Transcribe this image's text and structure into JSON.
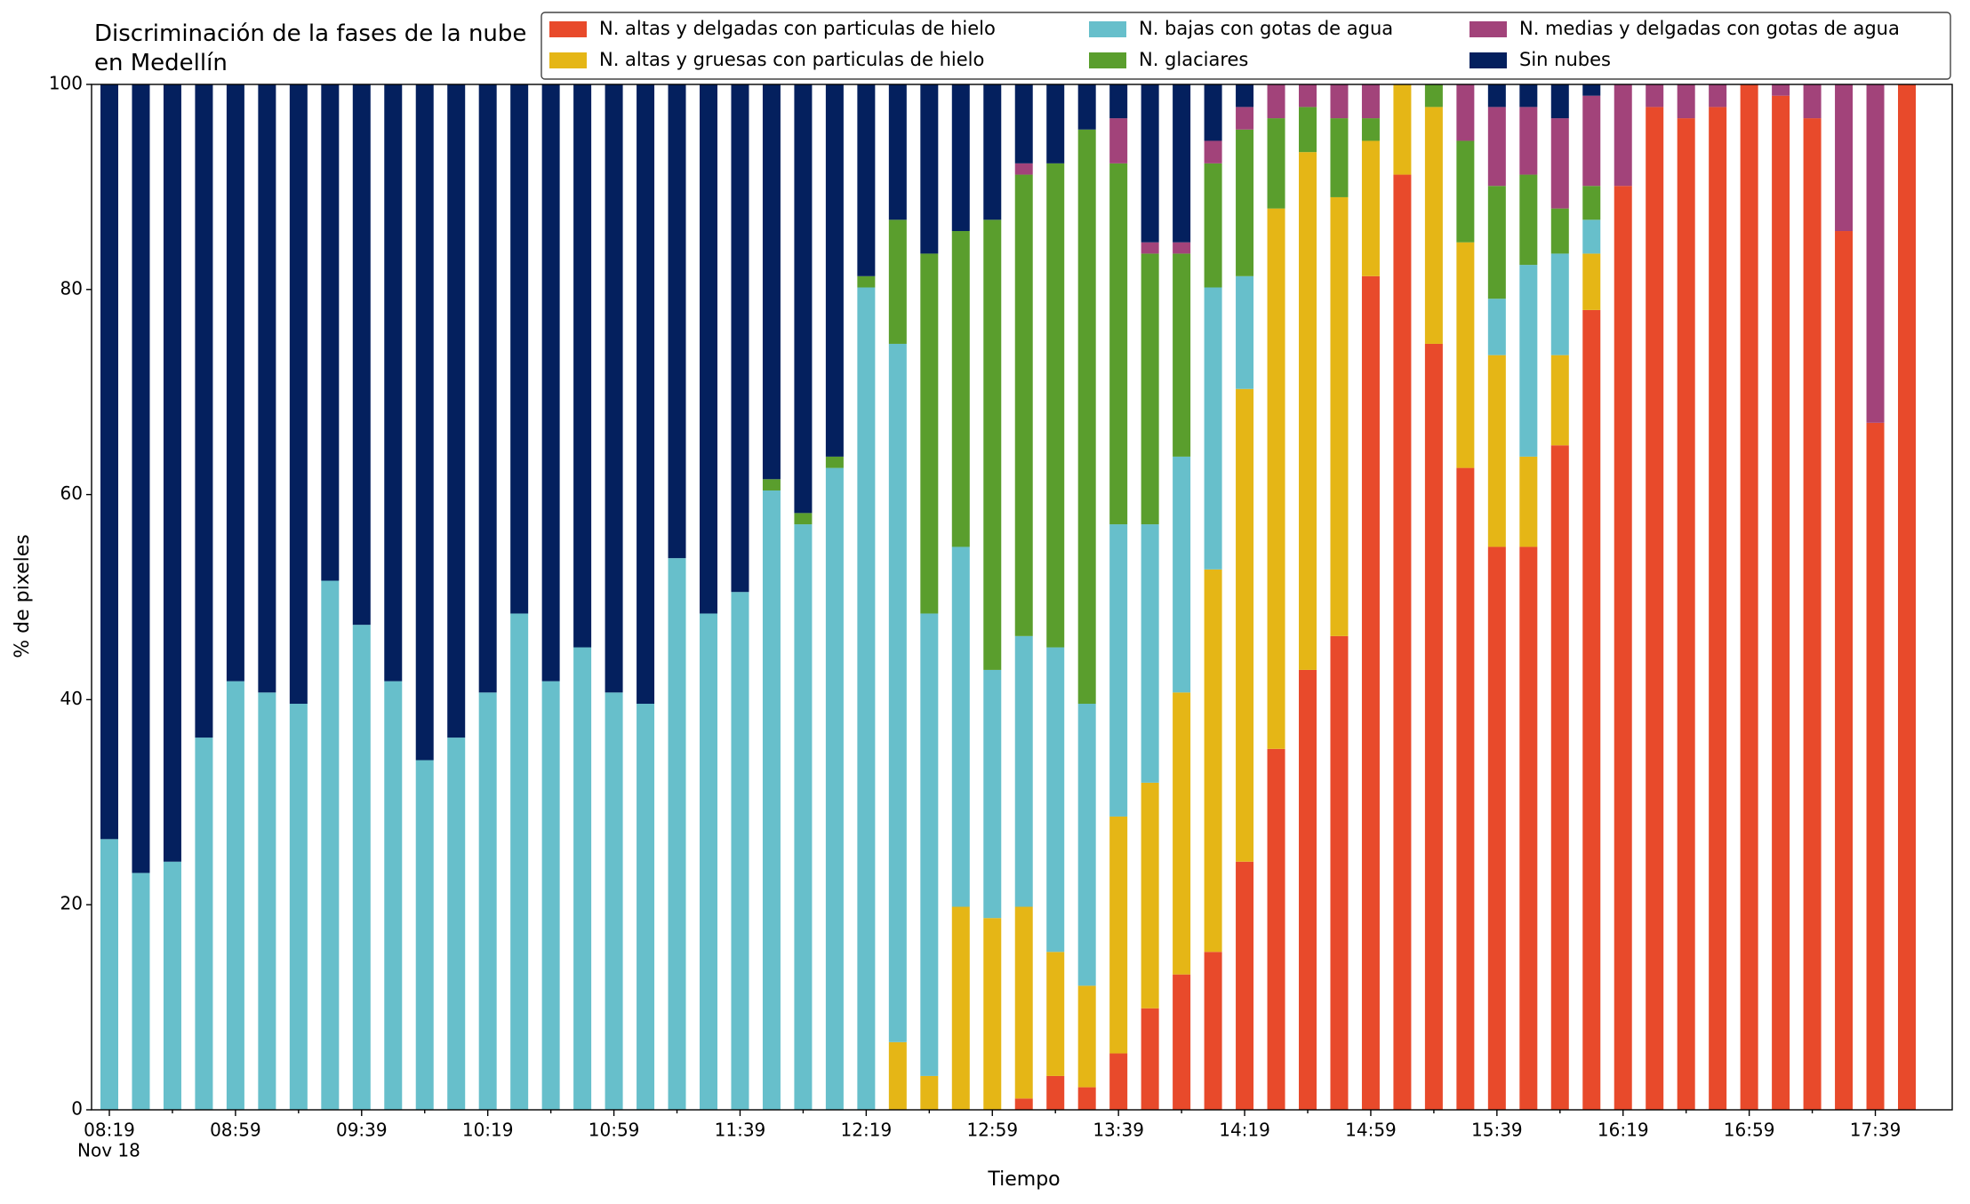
{
  "chart_data": {
    "type": "stacked_bar",
    "title": "Discriminación de la fases de la nube en Medellín",
    "x_label": "Tiempo",
    "y_label": "% de pixeles",
    "x_date_label": "Nov 18",
    "categories": [
      "08:19",
      null,
      null,
      null,
      "08:59",
      null,
      null,
      null,
      "09:39",
      null,
      null,
      null,
      "10:19",
      null,
      null,
      null,
      "10:59",
      null,
      null,
      null,
      "11:39",
      null,
      null,
      null,
      "12:19",
      null,
      null,
      null,
      "12:59",
      null,
      null,
      null,
      "13:39",
      null,
      null,
      null,
      "14:19",
      null,
      null,
      null,
      "14:59",
      null,
      null,
      null,
      "15:39",
      null,
      null,
      null,
      "16:19",
      null,
      null,
      null,
      "16:59",
      null,
      null,
      null,
      "17:39",
      null
    ],
    "ylim": [
      0,
      100
    ],
    "yticks": [
      0,
      20,
      40,
      60,
      80,
      100
    ],
    "legend": "top-right",
    "series": [
      {
        "name": "N. altas y delgadas con particulas de hielo",
        "color": "#e84a2b",
        "values": [
          0,
          0,
          0,
          0,
          0,
          0,
          0,
          0,
          0,
          0,
          0,
          0,
          0,
          0,
          0,
          0,
          0,
          0,
          0,
          0,
          0,
          0,
          0,
          0,
          0,
          0,
          0,
          0,
          0,
          1.1,
          3.3,
          2.2,
          5.5,
          9.9,
          13.2,
          15.4,
          24.2,
          35.2,
          42.9,
          46.2,
          81.3,
          91.2,
          74.7,
          62.6,
          54.9,
          54.9,
          64.8,
          78.0,
          90.1,
          97.8,
          96.7,
          97.8,
          100,
          98.9,
          96.7,
          85.7,
          67.0,
          100
        ]
      },
      {
        "name": "N. altas y gruesas con particulas de hielo",
        "color": "#e5b616",
        "values": [
          0,
          0,
          0,
          0,
          0,
          0,
          0,
          0,
          0,
          0,
          0,
          0,
          0,
          0,
          0,
          0,
          0,
          0,
          0,
          0,
          0,
          0,
          0,
          0,
          0,
          6.6,
          3.3,
          19.8,
          18.7,
          18.7,
          12.1,
          9.9,
          23.1,
          22.0,
          27.5,
          37.3,
          46.1,
          52.7,
          50.5,
          42.8,
          13.2,
          8.8,
          23.1,
          22.0,
          18.7,
          8.8,
          8.8,
          5.5,
          0,
          0,
          0,
          0,
          0,
          0,
          0,
          0,
          0,
          0
        ]
      },
      {
        "name": "N. bajas con gotas de agua",
        "color": "#67bfcb",
        "values": [
          26.4,
          23.1,
          24.2,
          36.3,
          41.8,
          40.7,
          39.6,
          51.6,
          47.3,
          41.8,
          34.1,
          36.3,
          40.7,
          48.4,
          41.8,
          45.1,
          40.7,
          39.6,
          53.8,
          48.4,
          50.5,
          60.4,
          57.1,
          62.6,
          80.2,
          68.1,
          45.1,
          35.1,
          24.2,
          26.4,
          29.7,
          27.5,
          28.5,
          25.2,
          23.0,
          27.5,
          11.0,
          0,
          0,
          0,
          0,
          0,
          0,
          0,
          5.5,
          18.7,
          9.9,
          3.3,
          0,
          0,
          0,
          0,
          0,
          0,
          0,
          0,
          0,
          0
        ]
      },
      {
        "name": "N. glaciares",
        "color": "#5a9e2d",
        "values": [
          0,
          0,
          0,
          0,
          0,
          0,
          0,
          0,
          0,
          0,
          0,
          0,
          0,
          0,
          0,
          0,
          0,
          0,
          0,
          0,
          0,
          1.1,
          1.1,
          1.1,
          1.1,
          12.1,
          35.1,
          30.8,
          43.9,
          45.0,
          47.2,
          56.0,
          35.2,
          26.4,
          19.8,
          12.1,
          14.3,
          8.8,
          4.4,
          7.7,
          2.2,
          0,
          2.2,
          9.9,
          11.0,
          8.8,
          4.4,
          3.3,
          0,
          0,
          0,
          0,
          0,
          0,
          0,
          0,
          0,
          0
        ]
      },
      {
        "name": "N. medias y delgadas con gotas de agua",
        "color": "#a2437a",
        "values": [
          0,
          0,
          0,
          0,
          0,
          0,
          0,
          0,
          0,
          0,
          0,
          0,
          0,
          0,
          0,
          0,
          0,
          0,
          0,
          0,
          0,
          0,
          0,
          0,
          0,
          0,
          0,
          0,
          0,
          1.1,
          0,
          0,
          4.4,
          1.1,
          1.1,
          2.2,
          2.2,
          3.3,
          2.2,
          3.3,
          3.3,
          0,
          0,
          5.5,
          7.7,
          6.6,
          8.8,
          8.8,
          9.9,
          2.2,
          3.3,
          2.2,
          0,
          1.1,
          3.3,
          14.3,
          33.0,
          0
        ]
      },
      {
        "name": "Sin nubes",
        "color": "#04205e",
        "values": [
          73.6,
          76.9,
          75.8,
          63.7,
          58.2,
          59.3,
          60.4,
          48.4,
          52.7,
          58.2,
          65.9,
          63.7,
          59.3,
          51.6,
          58.2,
          54.9,
          59.3,
          60.4,
          46.2,
          51.6,
          49.5,
          38.5,
          41.8,
          36.3,
          18.7,
          13.2,
          16.5,
          14.3,
          13.2,
          7.7,
          7.7,
          4.4,
          3.3,
          15.4,
          15.4,
          5.5,
          2.2,
          0,
          0,
          0,
          0,
          0,
          0,
          0,
          2.2,
          2.2,
          3.3,
          1.1,
          0,
          0,
          0,
          0,
          0,
          0,
          0,
          0,
          0,
          0
        ]
      }
    ]
  }
}
